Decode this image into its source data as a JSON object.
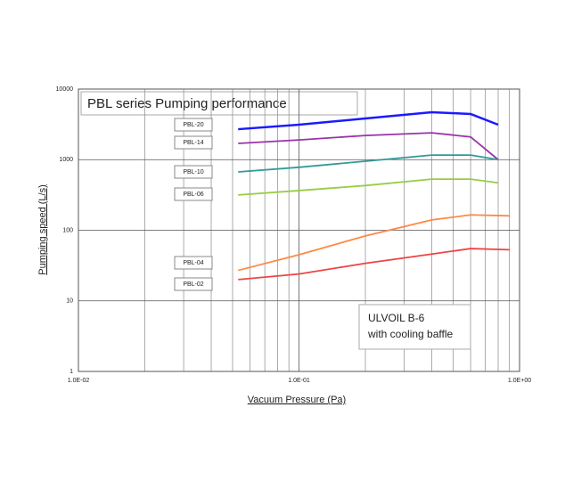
{
  "chart_data": {
    "type": "line",
    "title": "PBL series Pumping performance",
    "annotation": [
      "ULVOIL B-6",
      "with cooling baffle"
    ],
    "x_label": "Vacuum Pressure (Pa)",
    "y_label": "Pumping speed (L/s)",
    "xlog": true,
    "ylog": true,
    "grid": true,
    "xlim": [
      0.01,
      1
    ],
    "ylim": [
      1,
      10000
    ],
    "xticks": [
      {
        "value": 0.01,
        "label": "1.0E-02"
      },
      {
        "value": 0.1,
        "label": "1.0E-01"
      },
      {
        "value": 1,
        "label": "1.0E+00"
      }
    ],
    "yticks": [
      1,
      10,
      100,
      1000,
      10000
    ],
    "series": [
      {
        "name": "PBL-20",
        "color": "#1a1aff",
        "x": [
          0.053,
          0.1,
          0.2,
          0.4,
          0.6,
          0.8
        ],
        "values": [
          2700,
          3130,
          3830,
          4700,
          4440,
          3130
        ]
      },
      {
        "name": "PBL-14",
        "color": "#9933aa",
        "x": [
          0.053,
          0.1,
          0.2,
          0.4,
          0.6,
          0.8
        ],
        "values": [
          1700,
          1900,
          2200,
          2400,
          2100,
          1000
        ]
      },
      {
        "name": "PBL-10",
        "color": "#339999",
        "x": [
          0.053,
          0.1,
          0.2,
          0.4,
          0.6,
          0.8
        ],
        "values": [
          670,
          780,
          950,
          1160,
          1160,
          1000
        ]
      },
      {
        "name": "PBL-06",
        "color": "#99cc44",
        "x": [
          0.053,
          0.1,
          0.2,
          0.4,
          0.6,
          0.8
        ],
        "values": [
          316,
          365,
          430,
          530,
          530,
          470
        ]
      },
      {
        "name": "PBL-04",
        "color": "#ff8844",
        "x": [
          0.053,
          0.1,
          0.2,
          0.4,
          0.6,
          0.9
        ],
        "values": [
          27,
          45,
          83,
          140,
          165,
          160
        ]
      },
      {
        "name": "PBL-02",
        "color": "#ee4444",
        "x": [
          0.053,
          0.1,
          0.2,
          0.4,
          0.6,
          0.9
        ],
        "values": [
          20,
          24,
          34,
          46,
          55,
          53
        ]
      }
    ]
  }
}
